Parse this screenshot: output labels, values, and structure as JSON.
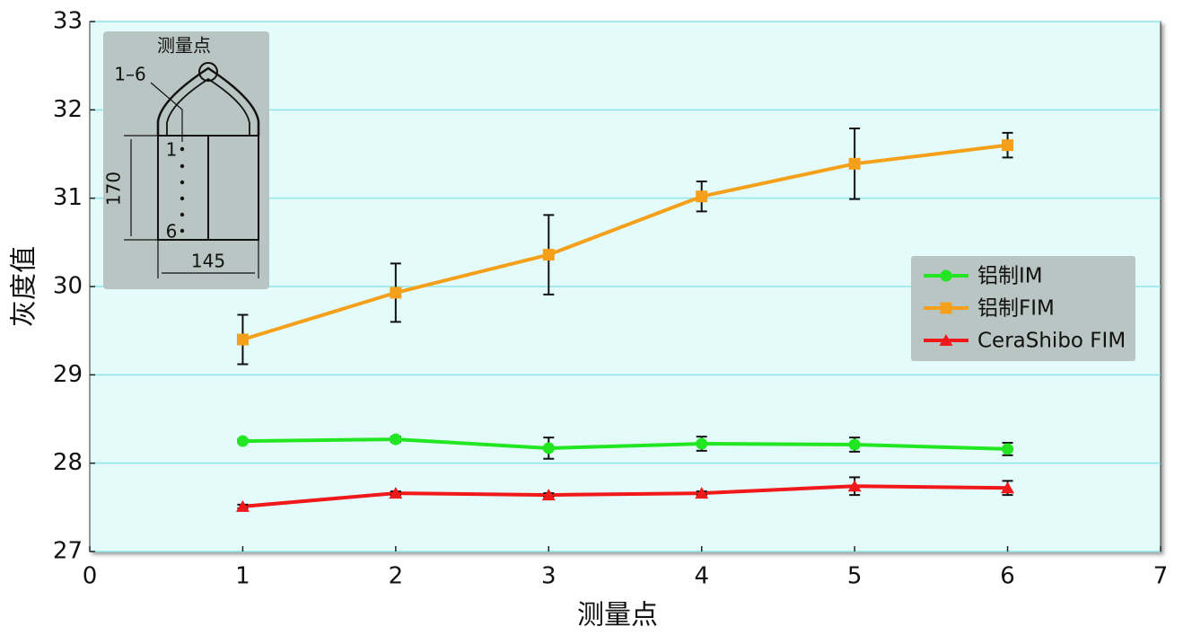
{
  "chart_data": {
    "type": "line",
    "x": [
      1,
      2,
      3,
      4,
      5,
      6
    ],
    "x_label": "测量点",
    "y_label": "灰度值",
    "xlim": [
      0,
      7
    ],
    "xticks": [
      0,
      1,
      2,
      3,
      4,
      5,
      6,
      7
    ],
    "ylim": [
      27,
      33
    ],
    "yticks": [
      27,
      28,
      29,
      30,
      31,
      32,
      33
    ],
    "grid": true,
    "legend": "right",
    "series": [
      {
        "name": "铝制IM",
        "color": "#22e622",
        "marker": "circle",
        "values": [
          28.25,
          28.27,
          28.17,
          28.22,
          28.21,
          28.16
        ],
        "errors": [
          0.02,
          0.03,
          0.12,
          0.08,
          0.08,
          0.07
        ]
      },
      {
        "name": "铝制FIM",
        "color": "#f5a01a",
        "marker": "square",
        "values": [
          29.4,
          29.93,
          30.36,
          31.02,
          31.39,
          31.6
        ],
        "errors": [
          0.28,
          0.33,
          0.45,
          0.17,
          0.4,
          0.14
        ]
      },
      {
        "name": "CeraShibo FIM",
        "color": "#f01818",
        "marker": "triangle",
        "values": [
          27.51,
          27.66,
          27.64,
          27.66,
          27.74,
          27.72
        ],
        "errors": [
          0.02,
          0.02,
          0.02,
          0.02,
          0.1,
          0.08
        ]
      }
    ]
  },
  "inset": {
    "title": "测量点",
    "pointer": "1–6",
    "height": "170",
    "width": "145",
    "first": "1",
    "last": "6"
  }
}
